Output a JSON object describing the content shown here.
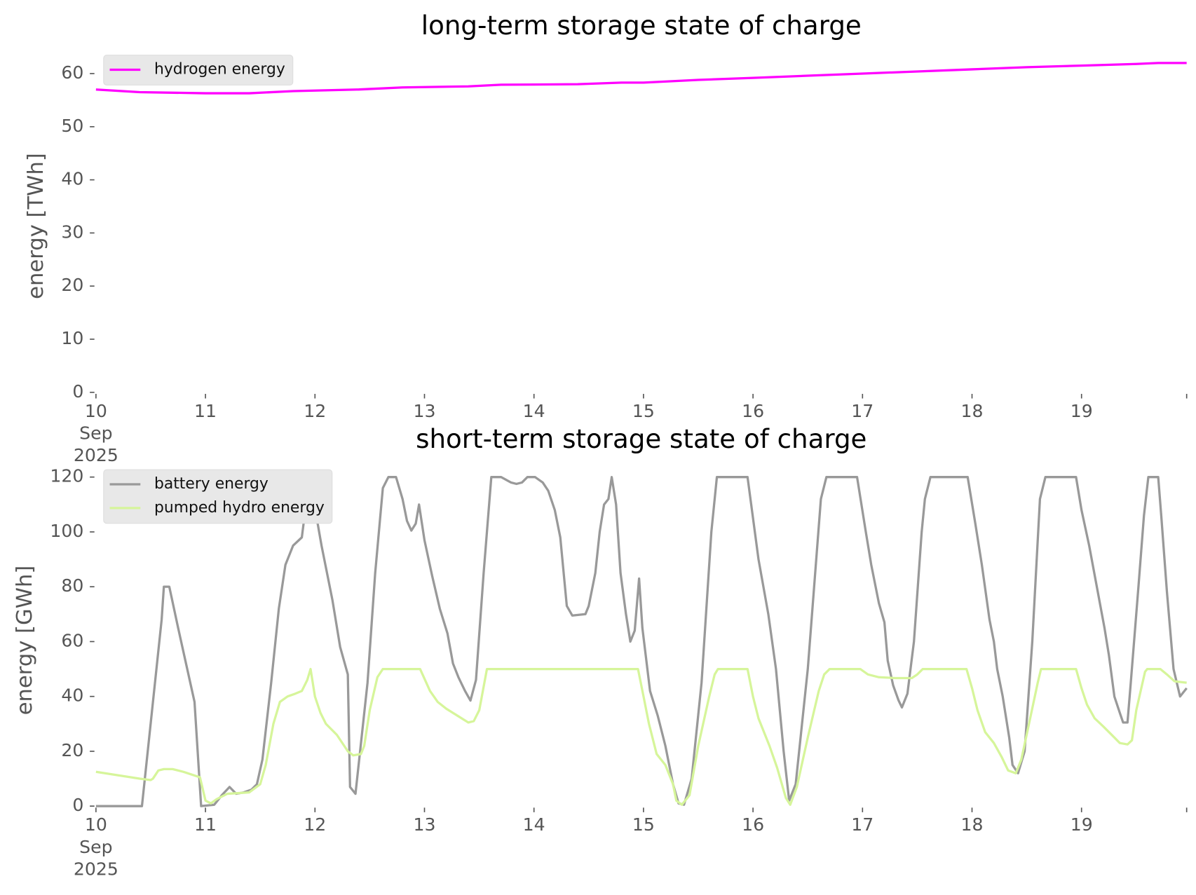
{
  "chart_data": [
    {
      "type": "line",
      "title": "long-term storage state of charge",
      "y_label": "energy [TWh]",
      "xlim": [
        10,
        19.96
      ],
      "ylim": [
        0,
        62.6
      ],
      "yticks": [
        0,
        10,
        20,
        30,
        40,
        50,
        60
      ],
      "xticks": [
        {
          "value": 10,
          "label": "10\nSep\n2025"
        },
        11,
        12,
        13,
        14,
        15,
        16,
        17,
        18,
        19
      ],
      "legend": "upper left",
      "series": [
        {
          "name": "hydrogen energy",
          "color": "#ff00ff",
          "x": [
            10,
            10.4,
            11,
            11.4,
            11.8,
            12.4,
            12.8,
            13.4,
            13.7,
            14.4,
            14.8,
            15,
            15.5,
            16,
            16.5,
            17,
            17.5,
            18,
            18.5,
            19,
            19.5,
            19.7,
            19.96
          ],
          "values": [
            57,
            56.5,
            56.3,
            56.3,
            56.7,
            57,
            57.4,
            57.6,
            57.9,
            58,
            58.3,
            58.3,
            58.8,
            59.2,
            59.6,
            60,
            60.4,
            60.8,
            61.2,
            61.5,
            61.8,
            62,
            62
          ]
        }
      ]
    },
    {
      "type": "line",
      "title": "short-term storage state of charge",
      "y_label": "energy [GWh]",
      "xlim": [
        10,
        19.96
      ],
      "ylim": [
        0,
        121
      ],
      "yticks": [
        0,
        20,
        40,
        60,
        80,
        100,
        120
      ],
      "xticks": [
        {
          "value": 10,
          "label": "10\nSep\n2025"
        },
        11,
        12,
        13,
        14,
        15,
        16,
        17,
        18,
        19
      ],
      "legend": "upper left",
      "series": [
        {
          "name": "battery energy",
          "color": "#999999",
          "x": [
            10,
            10.42,
            10.6,
            10.62,
            10.67,
            10.75,
            10.9,
            10.96,
            11.08,
            11.15,
            11.22,
            11.28,
            11.35,
            11.42,
            11.47,
            11.52,
            11.6,
            11.67,
            11.73,
            11.8,
            11.88,
            11.95,
            12.06,
            12.16,
            12.23,
            12.3,
            12.32,
            12.37,
            12.48,
            12.55,
            12.62,
            12.67,
            12.74,
            12.8,
            12.84,
            12.88,
            12.92,
            12.95,
            13.0,
            13.07,
            13.14,
            13.21,
            13.26,
            13.31,
            13.37,
            13.42,
            13.47,
            13.54,
            13.61,
            13.7,
            13.79,
            13.84,
            13.89,
            13.94,
            14.01,
            14.08,
            14.13,
            14.19,
            14.24,
            14.3,
            14.35,
            14.47,
            14.5,
            14.56,
            14.6,
            14.64,
            14.68,
            14.71,
            14.75,
            14.79,
            14.84,
            14.88,
            14.92,
            14.96,
            14.99,
            15.06,
            15.13,
            15.2,
            15.27,
            15.32,
            15.37,
            15.44,
            15.53,
            15.62,
            15.67,
            15.95,
            16.05,
            16.14,
            16.21,
            16.28,
            16.33,
            16.39,
            16.5,
            16.62,
            16.67,
            16.95,
            17.03,
            17.08,
            17.15,
            17.2,
            17.23,
            17.28,
            17.33,
            17.36,
            17.41,
            17.47,
            17.54,
            17.57,
            17.62,
            17.96,
            18.03,
            18.09,
            18.16,
            18.2,
            18.23,
            18.28,
            18.34,
            18.37,
            18.42,
            18.48,
            18.55,
            18.62,
            18.67,
            18.95,
            19.0,
            19.07,
            19.14,
            19.21,
            19.25,
            19.3,
            19.35,
            19.38,
            19.42,
            19.45,
            19.52,
            19.57,
            19.61,
            19.7,
            19.73,
            19.78,
            19.84,
            19.9,
            19.96
          ],
          "values": [
            0,
            0,
            68,
            80,
            80,
            65,
            38,
            0,
            0.5,
            4,
            7,
            4.5,
            5,
            6,
            8,
            17,
            45,
            72,
            88,
            95,
            98,
            120,
            95,
            75,
            58,
            48,
            7,
            4.5,
            45,
            85,
            116,
            120,
            120,
            112,
            104,
            100.5,
            103,
            110,
            97,
            84,
            72,
            63,
            52,
            47,
            42,
            38.5,
            46,
            85,
            120,
            120,
            118,
            117.5,
            118,
            120,
            120,
            118,
            115,
            108,
            98,
            73,
            69.5,
            70,
            73,
            85,
            100,
            110,
            112,
            120,
            110,
            85,
            70,
            60,
            64,
            83,
            65,
            42,
            33,
            22,
            8,
            1,
            0.5,
            10,
            45,
            100,
            120,
            120,
            90,
            70,
            50,
            20,
            2,
            8,
            50,
            112,
            120,
            120,
            100,
            88,
            74,
            67,
            53,
            44,
            38.5,
            36,
            41,
            60,
            100,
            112,
            120,
            120,
            103,
            88,
            68,
            60,
            50,
            40,
            25,
            15,
            12,
            20,
            60,
            112,
            120,
            120,
            108,
            95,
            80,
            65,
            55,
            40,
            34,
            30.5,
            30.5,
            45,
            80,
            106,
            120,
            120,
            105,
            78,
            50,
            40,
            43
          ]
        },
        {
          "name": "pumped hydro energy",
          "color": "#d6f59a",
          "x": [
            10,
            10.4,
            10.5,
            10.52,
            10.57,
            10.62,
            10.7,
            10.8,
            10.95,
            11.0,
            11.05,
            11.1,
            11.2,
            11.4,
            11.5,
            11.55,
            11.62,
            11.68,
            11.75,
            11.82,
            11.88,
            11.93,
            11.96,
            12.0,
            12.05,
            12.1,
            12.2,
            12.3,
            12.35,
            12.42,
            12.45,
            12.5,
            12.57,
            12.62,
            12.96,
            13.05,
            13.12,
            13.2,
            13.3,
            13.4,
            13.45,
            13.5,
            13.57,
            14.95,
            15.0,
            15.05,
            15.12,
            15.2,
            15.27,
            15.3,
            15.35,
            15.42,
            15.5,
            15.6,
            15.65,
            15.68,
            15.95,
            16.0,
            16.05,
            16.15,
            16.22,
            16.3,
            16.34,
            16.4,
            16.5,
            16.6,
            16.65,
            16.7,
            16.98,
            17.05,
            17.15,
            17.3,
            17.45,
            17.5,
            17.55,
            17.95,
            18.0,
            18.05,
            18.12,
            18.2,
            18.27,
            18.33,
            18.4,
            18.45,
            18.52,
            18.6,
            18.63,
            18.95,
            19.0,
            19.05,
            19.12,
            19.2,
            19.3,
            19.35,
            19.42,
            19.46,
            19.5,
            19.58,
            19.6,
            19.72,
            19.78,
            19.85,
            19.96
          ],
          "values": [
            12.5,
            10,
            9.5,
            10,
            13,
            13.5,
            13.5,
            12.5,
            10.5,
            2,
            1,
            2.5,
            4.5,
            5,
            8,
            15,
            30,
            38,
            40,
            41,
            42,
            46,
            50,
            40,
            34,
            30,
            26,
            20,
            18.5,
            19,
            22,
            35,
            47,
            50,
            50,
            42,
            38,
            35.5,
            33,
            30.5,
            31,
            35,
            50,
            50,
            40,
            30,
            19,
            15,
            8,
            2,
            0.5,
            4,
            22,
            40,
            48,
            50,
            50,
            40,
            32,
            22,
            14,
            3,
            0.5,
            7,
            25,
            42,
            48,
            50,
            50,
            48,
            47,
            46.7,
            46.7,
            48,
            50,
            50,
            43,
            35,
            27,
            23,
            18,
            13,
            12,
            17,
            30,
            45,
            50,
            50,
            43,
            37,
            32,
            29,
            25,
            23,
            22.5,
            24,
            35,
            49,
            50,
            50,
            48,
            45.5,
            45
          ]
        }
      ]
    }
  ]
}
